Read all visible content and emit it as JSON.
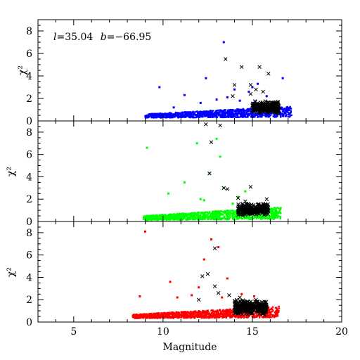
{
  "chart_data": {
    "type": "scatter",
    "xlabel": "Magnitude",
    "ylabel": "χ²",
    "xlim": [
      3,
      20
    ],
    "ylim": [
      0,
      9
    ],
    "x_ticks": [
      "5",
      "10",
      "15",
      "20"
    ],
    "y_ticks": [
      "0",
      "2",
      "4",
      "6",
      "8"
    ],
    "annotation": {
      "l_symbol": "l",
      "l_value": "=35.04",
      "b_symbol": "b",
      "b_value": "=−66.95"
    },
    "panels": [
      {
        "color": "#0000ff",
        "dense_band": {
          "x_start": 9.0,
          "x_end": 17.2,
          "y_start": 0.35,
          "y_end": 1.3
        },
        "scatter_points": [
          [
            9.8,
            3.0
          ],
          [
            11.2,
            2.3
          ],
          [
            12.4,
            3.8
          ],
          [
            13.0,
            1.9
          ],
          [
            13.4,
            7.0
          ],
          [
            14.8,
            2.6
          ],
          [
            15.3,
            3.3
          ],
          [
            15.8,
            2.2
          ],
          [
            16.7,
            3.8
          ],
          [
            12.1,
            1.6
          ],
          [
            13.6,
            2.1
          ],
          [
            14.3,
            1.8
          ],
          [
            10.6,
            1.2
          ],
          [
            15.0,
            3.0
          ],
          [
            14.0,
            2.8
          ]
        ],
        "cross_points": [
          [
            13.5,
            5.5
          ],
          [
            14.4,
            4.8
          ],
          [
            15.4,
            4.8
          ],
          [
            15.9,
            4.2
          ],
          [
            14.0,
            3.2
          ],
          [
            14.9,
            3.2
          ],
          [
            13.9,
            2.2
          ],
          [
            15.2,
            2.8
          ],
          [
            14.9,
            2.4
          ],
          [
            15.6,
            2.6
          ]
        ],
        "cross_cluster": {
          "x_start": 15.0,
          "x_end": 16.5,
          "y_start": 0.6,
          "y_end": 1.8
        }
      },
      {
        "color": "#00ff00",
        "dense_band": {
          "x_start": 8.9,
          "x_end": 16.6,
          "y_start": 0.2,
          "y_end": 1.3
        },
        "scatter_points": [
          [
            9.1,
            6.6
          ],
          [
            10.3,
            2.5
          ],
          [
            11.2,
            3.5
          ],
          [
            12.1,
            2.0
          ],
          [
            13.0,
            7.4
          ],
          [
            13.2,
            5.8
          ],
          [
            13.4,
            3.0
          ],
          [
            11.9,
            7.0
          ],
          [
            12.6,
            4.3
          ],
          [
            14.6,
            2.7
          ],
          [
            12.3,
            1.9
          ],
          [
            13.9,
            1.6
          ],
          [
            14.2,
            2.2
          ]
        ],
        "cross_points": [
          [
            12.7,
            7.1
          ],
          [
            12.4,
            8.7
          ],
          [
            13.2,
            8.6
          ],
          [
            12.6,
            4.3
          ],
          [
            13.4,
            3.0
          ],
          [
            13.6,
            2.9
          ],
          [
            14.9,
            3.1
          ],
          [
            14.2,
            2.1
          ],
          [
            15.8,
            2.0
          ],
          [
            14.6,
            1.8
          ]
        ],
        "cross_cluster": {
          "x_start": 14.2,
          "x_end": 15.9,
          "y_start": 0.5,
          "y_end": 1.7
        }
      },
      {
        "color": "#ff0000",
        "dense_band": {
          "x_start": 8.3,
          "x_end": 16.5,
          "y_start": 0.4,
          "y_end": 1.4
        },
        "scatter_points": [
          [
            9.0,
            8.1
          ],
          [
            10.4,
            3.6
          ],
          [
            11.6,
            2.4
          ],
          [
            12.3,
            5.6
          ],
          [
            12.7,
            7.4
          ],
          [
            13.1,
            6.7
          ],
          [
            13.6,
            3.9
          ],
          [
            10.8,
            2.2
          ],
          [
            14.4,
            2.5
          ],
          [
            12.0,
            3.1
          ],
          [
            13.3,
            2.2
          ],
          [
            15.1,
            2.3
          ],
          [
            8.7,
            2.3
          ]
        ],
        "cross_points": [
          [
            12.9,
            6.6
          ],
          [
            12.2,
            4.1
          ],
          [
            12.5,
            4.3
          ],
          [
            12.9,
            3.2
          ],
          [
            13.1,
            2.6
          ],
          [
            13.7,
            2.4
          ],
          [
            14.0,
            1.9
          ],
          [
            15.2,
            2.0
          ],
          [
            14.3,
            2.2
          ],
          [
            12.0,
            2.0
          ]
        ],
        "cross_cluster": {
          "x_start": 14.0,
          "x_end": 15.8,
          "y_start": 0.6,
          "y_end": 2.0
        }
      }
    ]
  }
}
